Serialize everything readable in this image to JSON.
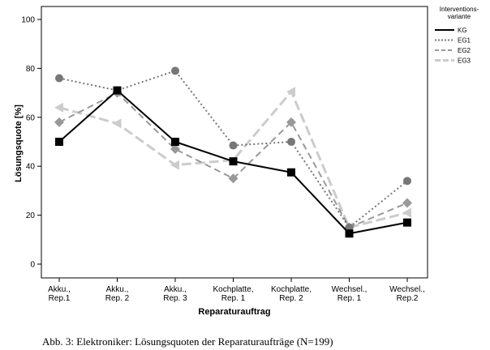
{
  "caption": "Abb. 3: Elektroniker: Lösungsquoten der Reparaturaufträge (N=199)",
  "chart_data": {
    "type": "line",
    "title": "",
    "xlabel": "Reparaturauftrag",
    "ylabel": "Lösungsquote [%]",
    "ylim": [
      0,
      100
    ],
    "yticks": [
      0,
      20,
      40,
      60,
      80,
      100
    ],
    "grid": false,
    "legend_position": "right",
    "legend_title": [
      "Interventions-",
      "variante"
    ],
    "categories": [
      [
        "Akku.,",
        "Rep.1"
      ],
      [
        "Akku.,",
        "Rep. 2"
      ],
      [
        "Akku.,",
        "Rep. 3"
      ],
      [
        "Kochplatte,",
        "Rep. 1"
      ],
      [
        "Kochplatte,",
        "Rep. 2"
      ],
      [
        "Wechsel.,",
        "Rep. 1"
      ],
      [
        "Wechsel.,",
        "Rep.2"
      ]
    ],
    "series": [
      {
        "name": "KG",
        "values": [
          50,
          71,
          50,
          42,
          37.5,
          12.5,
          17
        ],
        "color": "#000000",
        "dash": "",
        "width": 2,
        "marker": "square"
      },
      {
        "name": "EG1",
        "values": [
          76,
          71,
          79,
          48.5,
          50,
          15,
          34
        ],
        "color": "#777777",
        "dash": "2,3",
        "width": 2,
        "marker": "circle"
      },
      {
        "name": "EG2",
        "values": [
          58,
          70,
          47,
          35,
          58,
          15,
          25
        ],
        "color": "#999999",
        "dash": "8,5",
        "width": 2,
        "marker": "diamond"
      },
      {
        "name": "EG3",
        "values": [
          64,
          57.5,
          40.5,
          42.5,
          70.5,
          15,
          21
        ],
        "color": "#cccccc",
        "dash": "12,5",
        "width": 3,
        "marker": "triangle-left"
      }
    ]
  }
}
